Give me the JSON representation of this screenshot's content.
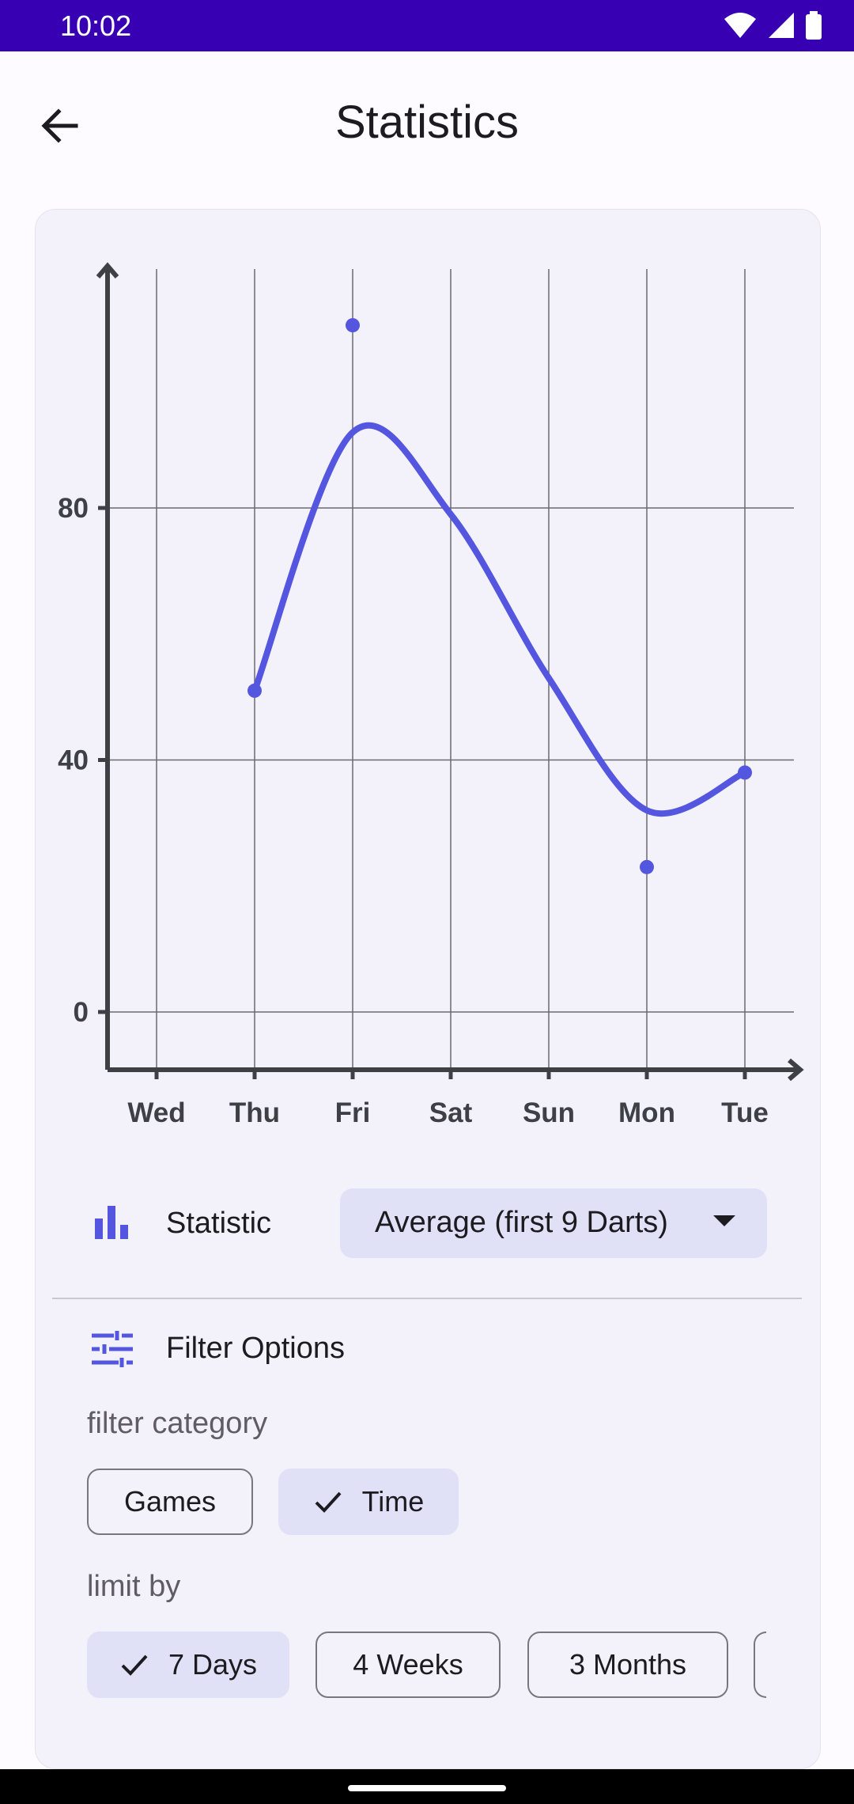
{
  "status_bar": {
    "time": "10:02"
  },
  "app_bar": {
    "title": "Statistics",
    "back_icon": "arrow-back-icon"
  },
  "chart_data": {
    "type": "line",
    "categories": [
      "Wed",
      "Thu",
      "Fri",
      "Sat",
      "Sun",
      "Mon",
      "Tue"
    ],
    "y_ticks": [
      "0",
      "40",
      "80"
    ],
    "ylim": [
      -9,
      118
    ],
    "grid": true,
    "series": [
      {
        "points": [
          {
            "x": "Thu",
            "y": 51
          },
          {
            "x": "Fri",
            "y": 109
          },
          {
            "x": "Mon",
            "y": 23
          },
          {
            "x": "Tue",
            "y": 38
          }
        ]
      }
    ],
    "curve_trend": [
      {
        "x": "Thu",
        "y": 51
      },
      {
        "x": "Fri",
        "y": 92
      },
      {
        "x": "Sat",
        "y": 79
      },
      {
        "x": "Sun",
        "y": 53
      },
      {
        "x": "Mon",
        "y": 32
      },
      {
        "x": "Tue",
        "y": 38
      }
    ],
    "line_color": "#5456e0",
    "axis_color": "#3f3f46"
  },
  "statistic": {
    "label": "Statistic",
    "icon": "bar-chart-icon",
    "selected": "Average (first 9 Darts)"
  },
  "filter": {
    "label": "Filter Options",
    "icon": "tune-icon",
    "category_label": "filter category",
    "categories": [
      {
        "label": "Games",
        "selected": false
      },
      {
        "label": "Time",
        "selected": true
      }
    ],
    "limit_label": "limit by",
    "limits": [
      {
        "label": "7 Days",
        "selected": true
      },
      {
        "label": "4 Weeks",
        "selected": false
      },
      {
        "label": "3 Months",
        "selected": false
      }
    ]
  },
  "colors": {
    "accent": "#5456e0",
    "chip_selected": "#e0e1f6",
    "status_bar": "#3700b3"
  }
}
